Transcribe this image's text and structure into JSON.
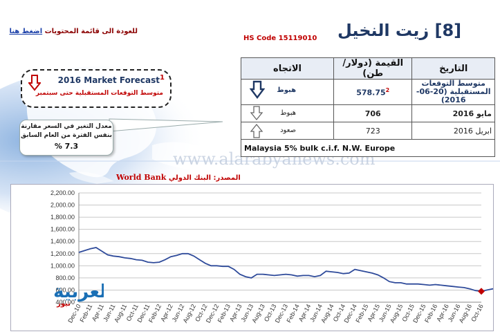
{
  "header": {
    "back_text": "للعودة الى قائمة المحتويات",
    "back_link": "اضغط هنا",
    "title": "[8] زيت النخيل",
    "hs_code": "HS Code 15119010"
  },
  "forecast": {
    "year": "2016",
    "title": "Market Forecast",
    "superscript": "1",
    "subtitle": "متوسط التوقعات المستقبلية حتى سبتمبر"
  },
  "change": {
    "text": "معدل التغير في السعر مقارنة بنفس الفترة من العام السابق",
    "value": "7.3 %"
  },
  "source": {
    "label": "المصدر: البنك الدولي",
    "name": "World Bank"
  },
  "table": {
    "headers": {
      "date": "التاريخ",
      "value": "القيمة (دولار/طن)",
      "direction": "الاتجاه"
    },
    "rows": [
      {
        "date": "متوسط التوقعات المستقبلية (20-06-2016)",
        "value": "578.75",
        "sup": "2",
        "direction": "هبوط",
        "arrow": "down-bold"
      },
      {
        "date": "مايو 2016",
        "value": "706",
        "direction": "هبوط",
        "arrow": "down"
      },
      {
        "date": "ابريل 2016",
        "value": "723",
        "direction": "صعود",
        "arrow": "up"
      }
    ],
    "note": "Malaysia 5% bulk c.i.f. N.W. Europe"
  },
  "watermark": "www.alarabyanews.com",
  "logo": {
    "text": "العربية",
    "sub": "نيوز"
  },
  "colors": {
    "line": "#2e4a9a",
    "forecast_marker": "#c00000",
    "title": "#1f3864",
    "accent_red": "#c00000"
  },
  "chart_data": {
    "type": "line",
    "title": "",
    "xlabel": "",
    "ylabel": "",
    "ylim": [
      400,
      2200
    ],
    "yticks": [
      "400.00",
      "600.00",
      "800.00",
      "1,000.00",
      "1,200.00",
      "1,400.00",
      "1,600.00",
      "1,800.00",
      "2,000.00",
      "2,200.00"
    ],
    "yvalues": [
      400,
      600,
      800,
      1000,
      1200,
      1400,
      1600,
      1800,
      2000,
      2200
    ],
    "xticks": [
      "Dec-10",
      "Feb-11",
      "Apr-11",
      "Jun-11",
      "Aug-11",
      "Oct-11",
      "Dec-11",
      "Feb-12",
      "Apr-12",
      "Jun-12",
      "Aug-12",
      "Oct-12",
      "Dec-12",
      "Feb-13",
      "Apr-13",
      "Jun-13",
      "Aug-13",
      "Oct-13",
      "Dec-13",
      "Feb-14",
      "Apr-14",
      "Jun-14",
      "Aug-14",
      "Oct-14",
      "Dec-14",
      "Feb-15",
      "Apr-15",
      "Jun-15",
      "Aug-15",
      "Oct-15",
      "Dec-15",
      "Feb-16",
      "Apr-16",
      "Jun-16",
      "Aug-16",
      "Oct-16"
    ],
    "series": [
      {
        "values": [
          1220,
          1250,
          1280,
          1300,
          1240,
          1180,
          1160,
          1150,
          1130,
          1120,
          1100,
          1090,
          1060,
          1050,
          1060,
          1100,
          1150,
          1170,
          1200,
          1200,
          1160,
          1100,
          1040,
          1000,
          1000,
          990,
          990,
          940,
          860,
          820,
          800,
          860,
          860,
          850,
          840,
          850,
          860,
          850,
          830,
          840,
          840,
          820,
          840,
          910,
          900,
          890,
          870,
          880,
          940,
          920,
          900,
          880,
          850,
          800,
          740,
          720,
          720,
          700,
          700,
          700,
          690,
          680,
          690,
          680,
          670,
          660,
          650,
          640,
          620,
          590,
          580,
          600,
          620,
          610,
          600,
          590,
          620,
          680,
          710,
          723,
          706
        ]
      }
    ],
    "forecast_point": {
      "x": "Oct-16",
      "value": 578.75
    }
  }
}
